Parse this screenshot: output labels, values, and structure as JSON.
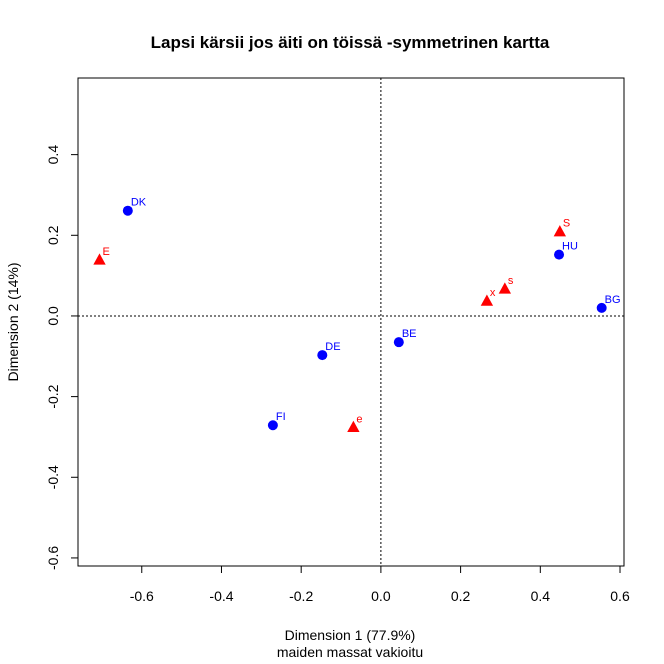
{
  "chart_data": {
    "type": "scatter",
    "title": "Lapsi kärsii jos äiti on töissä -symmetrinen kartta",
    "xlabel": "Dimension 1 (77.9%)",
    "xlabel_sub": "maiden massat vakioitu",
    "ylabel": "Dimension 2 (14%)",
    "xlim": [
      -0.76,
      0.61
    ],
    "ylim": [
      -0.62,
      0.59
    ],
    "x_ticks": [
      -0.6,
      -0.4,
      -0.2,
      0.0,
      0.2,
      0.4,
      0.6
    ],
    "x_tick_labels": [
      "-0.6",
      "-0.4",
      "-0.2",
      "0.0",
      "0.2",
      "0.4",
      "0.6"
    ],
    "y_ticks": [
      -0.6,
      -0.4,
      -0.2,
      0.0,
      0.2,
      0.4
    ],
    "y_tick_labels": [
      "-0.6",
      "-0.4",
      "-0.2",
      "0.0",
      "0.2",
      "0.4"
    ],
    "reference_lines": {
      "x": 0,
      "y": 0,
      "style": "dotted"
    },
    "series": [
      {
        "marker": "circle",
        "color": "#0000ff",
        "points": [
          {
            "label": "DK",
            "x": -0.635,
            "y": 0.261
          },
          {
            "label": "DE",
            "x": -0.147,
            "y": -0.097
          },
          {
            "label": "FI",
            "x": -0.271,
            "y": -0.271
          },
          {
            "label": "BE",
            "x": 0.045,
            "y": -0.065
          },
          {
            "label": "HU",
            "x": 0.447,
            "y": 0.152
          },
          {
            "label": "BG",
            "x": 0.554,
            "y": 0.02
          }
        ]
      },
      {
        "marker": "triangle",
        "color": "#ff0000",
        "points": [
          {
            "label": "E",
            "x": -0.706,
            "y": 0.139
          },
          {
            "label": "e",
            "x": -0.069,
            "y": -0.276
          },
          {
            "label": "x",
            "x": 0.266,
            "y": 0.037
          },
          {
            "label": "s",
            "x": 0.311,
            "y": 0.067
          },
          {
            "label": "S",
            "x": 0.449,
            "y": 0.209
          }
        ]
      }
    ]
  }
}
